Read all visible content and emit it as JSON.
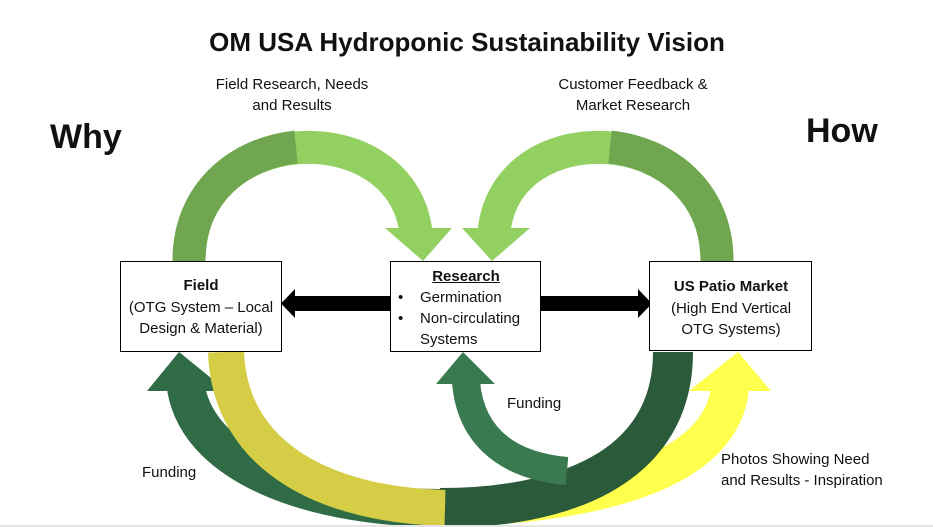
{
  "title": "OM USA Hydroponic Sustainability Vision",
  "side_labels": {
    "left": "Why",
    "right": "How"
  },
  "top_labels": {
    "left": [
      "Field Research, Needs",
      "and Results"
    ],
    "right": [
      "Customer Feedback &",
      "Market Research"
    ]
  },
  "nodes": {
    "field": {
      "title": "Field",
      "lines": [
        "(OTG System – Local",
        "Design & Material)"
      ]
    },
    "research": {
      "title": "Research",
      "bullets": [
        "Germination",
        "Non-circulating"
      ],
      "continuation": "Systems"
    },
    "market": {
      "title": "US Patio Market",
      "lines": [
        "(High End Vertical",
        "OTG Systems)"
      ]
    }
  },
  "bottom_labels": {
    "funding_middle": "Funding",
    "funding_left": "Funding",
    "photos": [
      "Photos Showing Need",
      "and Results - Inspiration"
    ]
  },
  "colors": {
    "light_green": "#92d062",
    "mid_green": "#70a64f",
    "dark_green": "#2f6b45",
    "darker_green": "#2b5a3a",
    "olive": "#d4cd45",
    "yellow": "#ffff4d",
    "black": "#000000"
  }
}
